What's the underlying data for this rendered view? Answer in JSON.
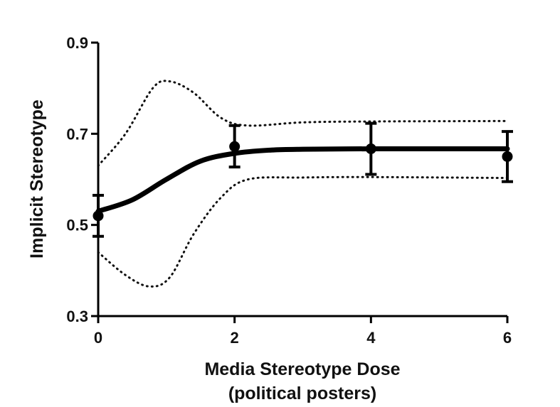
{
  "chart_data": {
    "type": "line",
    "xlabel_line1": "Media Stereotype Dose",
    "xlabel_line2": "(political posters)",
    "ylabel": "Implicit Stereotype",
    "xlim": [
      0,
      6
    ],
    "ylim": [
      0.3,
      0.9
    ],
    "x_ticks": [
      "0",
      "2",
      "4",
      "6"
    ],
    "y_ticks": [
      "0.3",
      "0.5",
      "0.7",
      "0.9"
    ],
    "grid": false,
    "points": [
      {
        "x": 0,
        "y": 0.52,
        "err_low": 0.475,
        "err_high": 0.565
      },
      {
        "x": 2,
        "y": 0.672,
        "err_low": 0.627,
        "err_high": 0.718
      },
      {
        "x": 4,
        "y": 0.667,
        "err_low": 0.611,
        "err_high": 0.723
      },
      {
        "x": 6,
        "y": 0.65,
        "err_low": 0.595,
        "err_high": 0.705
      }
    ],
    "fit_curve": [
      {
        "x": 0,
        "y": 0.53
      },
      {
        "x": 0.5,
        "y": 0.555
      },
      {
        "x": 1,
        "y": 0.6
      },
      {
        "x": 1.5,
        "y": 0.64
      },
      {
        "x": 2,
        "y": 0.657
      },
      {
        "x": 2.5,
        "y": 0.664
      },
      {
        "x": 3,
        "y": 0.666
      },
      {
        "x": 4,
        "y": 0.667
      },
      {
        "x": 5,
        "y": 0.667
      },
      {
        "x": 6,
        "y": 0.667
      }
    ],
    "ci_upper": [
      {
        "x": 0,
        "y": 0.63
      },
      {
        "x": 0.4,
        "y": 0.7
      },
      {
        "x": 0.8,
        "y": 0.8
      },
      {
        "x": 1.05,
        "y": 0.815
      },
      {
        "x": 1.4,
        "y": 0.79
      },
      {
        "x": 1.8,
        "y": 0.735
      },
      {
        "x": 2.2,
        "y": 0.718
      },
      {
        "x": 3,
        "y": 0.725
      },
      {
        "x": 4,
        "y": 0.727
      },
      {
        "x": 6,
        "y": 0.728
      }
    ],
    "ci_lower": [
      {
        "x": 0,
        "y": 0.44
      },
      {
        "x": 0.4,
        "y": 0.39
      },
      {
        "x": 0.75,
        "y": 0.365
      },
      {
        "x": 1.05,
        "y": 0.385
      },
      {
        "x": 1.4,
        "y": 0.48
      },
      {
        "x": 1.8,
        "y": 0.56
      },
      {
        "x": 2.2,
        "y": 0.6
      },
      {
        "x": 3,
        "y": 0.604
      },
      {
        "x": 4,
        "y": 0.605
      },
      {
        "x": 6,
        "y": 0.603
      }
    ]
  }
}
